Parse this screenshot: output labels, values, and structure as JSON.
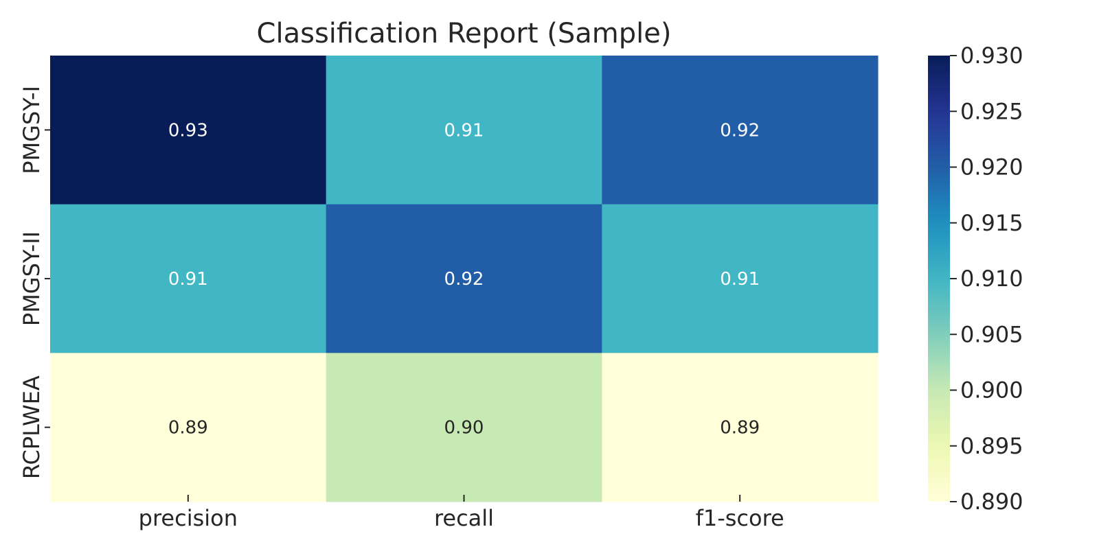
{
  "chart_data": {
    "type": "heatmap",
    "title": "Classification Report (Sample)",
    "x_categories": [
      "precision",
      "recall",
      "f1-score"
    ],
    "y_categories": [
      "PMGSY-I",
      "PMGSY-II",
      "RCPLWEA"
    ],
    "values": [
      [
        0.93,
        0.91,
        0.92
      ],
      [
        0.91,
        0.92,
        0.91
      ],
      [
        0.89,
        0.9,
        0.89
      ]
    ],
    "cell_labels": [
      [
        "0.93",
        "0.91",
        "0.92"
      ],
      [
        "0.91",
        "0.92",
        "0.91"
      ],
      [
        "0.89",
        "0.90",
        "0.89"
      ]
    ],
    "colorbar": {
      "range": [
        0.89,
        0.93
      ],
      "ticks": [
        "0.930",
        "0.925",
        "0.920",
        "0.915",
        "0.910",
        "0.905",
        "0.900",
        "0.895",
        "0.890"
      ],
      "colormap": "YlGnBu"
    }
  }
}
